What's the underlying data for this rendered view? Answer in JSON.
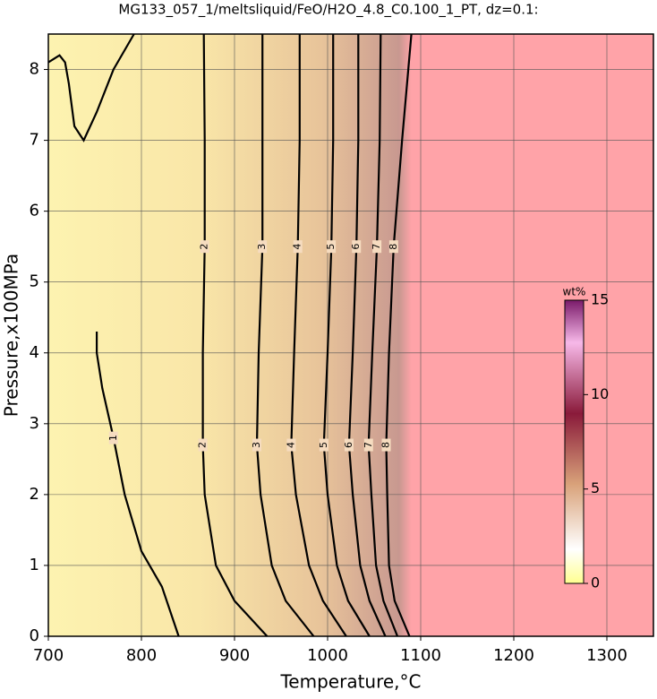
{
  "chart_data": {
    "type": "contour",
    "title": "MG133_057_1/meltsliquid/FeO/H2O_4.8_C0.100_1_PT, dz=0.1:",
    "x_label": "Temperature,°C",
    "y_label": "Pressure,x100MPa",
    "xlim": [
      700,
      1350
    ],
    "ylim": [
      0,
      8.5
    ],
    "xticks": [
      700,
      800,
      900,
      1000,
      1100,
      1200,
      1300
    ],
    "yticks": [
      0,
      1,
      2,
      3,
      4,
      5,
      6,
      7,
      8
    ],
    "grid": true,
    "contours": [
      {
        "level": 1,
        "x": [
          840,
          822,
          800,
          782,
          770,
          758,
          752,
          752,
          null,
          792,
          770,
          752,
          738,
          728,
          722,
          718,
          712,
          700
        ],
        "y": [
          0,
          0.7,
          1.2,
          2,
          2.8,
          3.5,
          4.0,
          4.3,
          null,
          8.5,
          8.0,
          7.4,
          7.0,
          7.2,
          7.8,
          8.1,
          8.2,
          8.1
        ]
      },
      {
        "level": 2,
        "x": [
          935,
          900,
          880,
          868,
          866,
          866,
          868,
          868,
          867
        ],
        "y": [
          0,
          0.5,
          1,
          2,
          2.7,
          4,
          5.5,
          7,
          8.5
        ]
      },
      {
        "level": 3,
        "x": [
          985,
          955,
          940,
          928,
          924,
          926,
          930,
          930,
          930
        ],
        "y": [
          0,
          0.5,
          1,
          2,
          2.7,
          4,
          5.5,
          7,
          8.5
        ]
      },
      {
        "level": 4,
        "x": [
          1020,
          995,
          980,
          966,
          961,
          964,
          968,
          970,
          970
        ],
        "y": [
          0,
          0.5,
          1,
          2,
          2.7,
          4,
          5.5,
          7,
          8.5
        ]
      },
      {
        "level": 5,
        "x": [
          1045,
          1022,
          1010,
          1000,
          996,
          1000,
          1004,
          1006,
          1006
        ],
        "y": [
          0,
          0.5,
          1,
          2,
          2.7,
          4,
          5.5,
          7,
          8.5
        ]
      },
      {
        "level": 6,
        "x": [
          1062,
          1045,
          1035,
          1027,
          1023,
          1027,
          1031,
          1033,
          1033
        ],
        "y": [
          0,
          0.5,
          1,
          2,
          2.7,
          4,
          5.5,
          7,
          8.5
        ]
      },
      {
        "level": 7,
        "x": [
          1075,
          1060,
          1052,
          1047,
          1044,
          1048,
          1053,
          1056,
          1057
        ],
        "y": [
          0,
          0.5,
          1,
          2,
          2.7,
          4,
          5.5,
          7,
          8.5
        ]
      },
      {
        "level": 8,
        "x": [
          1088,
          1072,
          1066,
          1064,
          1063,
          1066,
          1071,
          1080,
          1090
        ],
        "y": [
          0,
          0.5,
          1,
          2,
          2.7,
          4,
          5.5,
          7,
          8.5
        ]
      }
    ],
    "colorbar": {
      "label": "wt%",
      "lim": [
        0,
        15
      ],
      "ticks": [
        0,
        5,
        10,
        15
      ]
    }
  }
}
